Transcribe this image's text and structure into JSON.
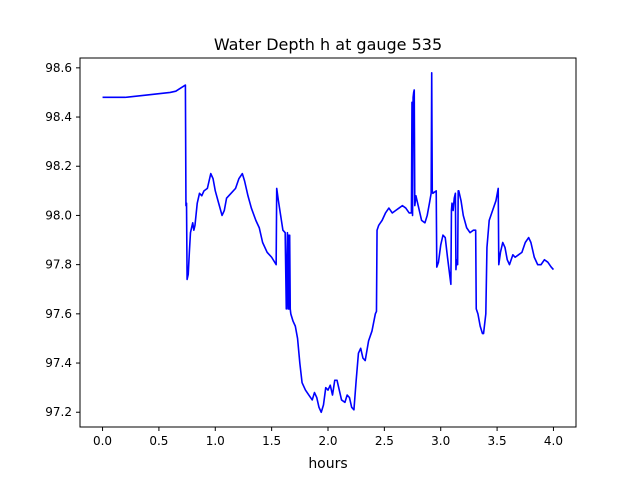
{
  "chart_data": {
    "type": "line",
    "title": "Water Depth h at gauge 535",
    "xlabel": "hours",
    "ylabel": "",
    "xlim": [
      -0.2,
      4.2
    ],
    "ylim": [
      97.14,
      98.64
    ],
    "x_ticks": [
      "0.0",
      "0.5",
      "1.0",
      "1.5",
      "2.0",
      "2.5",
      "3.0",
      "3.5",
      "4.0"
    ],
    "y_ticks": [
      "97.2",
      "97.4",
      "97.6",
      "97.8",
      "98.0",
      "98.2",
      "98.4",
      "98.6"
    ],
    "grid": false,
    "legend": "none",
    "series": [
      {
        "color": "#0000ff",
        "points": [
          [
            0.0,
            98.48
          ],
          [
            0.2,
            98.48
          ],
          [
            0.4,
            98.49
          ],
          [
            0.6,
            98.5
          ],
          [
            0.65,
            98.505
          ],
          [
            0.7,
            98.52
          ],
          [
            0.735,
            98.53
          ],
          [
            0.74,
            98.04
          ],
          [
            0.745,
            98.05
          ],
          [
            0.75,
            97.74
          ],
          [
            0.76,
            97.76
          ],
          [
            0.77,
            97.85
          ],
          [
            0.78,
            97.93
          ],
          [
            0.79,
            97.95
          ],
          [
            0.8,
            97.97
          ],
          [
            0.81,
            97.94
          ],
          [
            0.82,
            97.96
          ],
          [
            0.84,
            98.05
          ],
          [
            0.86,
            98.09
          ],
          [
            0.88,
            98.08
          ],
          [
            0.9,
            98.1
          ],
          [
            0.93,
            98.11
          ],
          [
            0.96,
            98.17
          ],
          [
            0.98,
            98.15
          ],
          [
            1.0,
            98.1
          ],
          [
            1.03,
            98.05
          ],
          [
            1.06,
            98.0
          ],
          [
            1.08,
            98.02
          ],
          [
            1.1,
            98.07
          ],
          [
            1.14,
            98.09
          ],
          [
            1.18,
            98.11
          ],
          [
            1.21,
            98.15
          ],
          [
            1.24,
            98.17
          ],
          [
            1.26,
            98.14
          ],
          [
            1.29,
            98.08
          ],
          [
            1.32,
            98.03
          ],
          [
            1.36,
            97.98
          ],
          [
            1.39,
            97.95
          ],
          [
            1.42,
            97.89
          ],
          [
            1.46,
            97.85
          ],
          [
            1.5,
            97.83
          ],
          [
            1.54,
            97.8
          ],
          [
            1.545,
            98.11
          ],
          [
            1.56,
            98.06
          ],
          [
            1.58,
            98.0
          ],
          [
            1.6,
            97.94
          ],
          [
            1.62,
            97.93
          ],
          [
            1.63,
            97.62
          ],
          [
            1.64,
            97.93
          ],
          [
            1.645,
            97.62
          ],
          [
            1.65,
            97.92
          ],
          [
            1.655,
            97.62
          ],
          [
            1.66,
            97.92
          ],
          [
            1.665,
            97.62
          ],
          [
            1.67,
            97.6
          ],
          [
            1.69,
            97.57
          ],
          [
            1.71,
            97.55
          ],
          [
            1.73,
            97.5
          ],
          [
            1.75,
            97.4
          ],
          [
            1.77,
            97.32
          ],
          [
            1.8,
            97.29
          ],
          [
            1.83,
            97.27
          ],
          [
            1.86,
            97.25
          ],
          [
            1.88,
            97.28
          ],
          [
            1.9,
            97.26
          ],
          [
            1.92,
            97.22
          ],
          [
            1.94,
            97.2
          ],
          [
            1.96,
            97.23
          ],
          [
            1.98,
            97.3
          ],
          [
            2.0,
            97.29
          ],
          [
            2.02,
            97.31
          ],
          [
            2.04,
            97.27
          ],
          [
            2.06,
            97.33
          ],
          [
            2.08,
            97.33
          ],
          [
            2.1,
            97.29
          ],
          [
            2.12,
            97.25
          ],
          [
            2.15,
            97.24
          ],
          [
            2.17,
            97.27
          ],
          [
            2.19,
            97.26
          ],
          [
            2.21,
            97.22
          ],
          [
            2.23,
            97.21
          ],
          [
            2.25,
            97.33
          ],
          [
            2.27,
            97.44
          ],
          [
            2.29,
            97.46
          ],
          [
            2.31,
            97.42
          ],
          [
            2.33,
            97.41
          ],
          [
            2.36,
            97.49
          ],
          [
            2.39,
            97.53
          ],
          [
            2.42,
            97.6
          ],
          [
            2.43,
            97.61
          ],
          [
            2.435,
            97.94
          ],
          [
            2.45,
            97.96
          ],
          [
            2.48,
            97.98
          ],
          [
            2.51,
            98.01
          ],
          [
            2.54,
            98.03
          ],
          [
            2.57,
            98.01
          ],
          [
            2.6,
            98.02
          ],
          [
            2.63,
            98.03
          ],
          [
            2.66,
            98.04
          ],
          [
            2.69,
            98.03
          ],
          [
            2.72,
            98.01
          ],
          [
            2.74,
            98.01
          ],
          [
            2.745,
            98.46
          ],
          [
            2.75,
            98.0
          ],
          [
            2.755,
            98.48
          ],
          [
            2.76,
            98.5
          ],
          [
            2.765,
            98.51
          ],
          [
            2.77,
            98.04
          ],
          [
            2.78,
            98.08
          ],
          [
            2.79,
            98.06
          ],
          [
            2.8,
            98.04
          ],
          [
            2.83,
            97.98
          ],
          [
            2.86,
            97.97
          ],
          [
            2.88,
            98.0
          ],
          [
            2.9,
            98.05
          ],
          [
            2.915,
            98.09
          ],
          [
            2.92,
            98.58
          ],
          [
            2.925,
            98.1
          ],
          [
            2.93,
            98.09
          ],
          [
            2.96,
            98.1
          ],
          [
            2.965,
            97.79
          ],
          [
            2.98,
            97.81
          ],
          [
            3.0,
            97.88
          ],
          [
            3.02,
            97.92
          ],
          [
            3.04,
            97.91
          ],
          [
            3.06,
            97.83
          ],
          [
            3.09,
            97.72
          ],
          [
            3.095,
            98.02
          ],
          [
            3.1,
            98.05
          ],
          [
            3.11,
            98.02
          ],
          [
            3.12,
            98.07
          ],
          [
            3.13,
            98.09
          ],
          [
            3.135,
            97.78
          ],
          [
            3.14,
            97.82
          ],
          [
            3.15,
            97.8
          ],
          [
            3.155,
            98.1
          ],
          [
            3.16,
            98.1
          ],
          [
            3.18,
            98.06
          ],
          [
            3.2,
            98.0
          ],
          [
            3.23,
            97.95
          ],
          [
            3.26,
            97.93
          ],
          [
            3.29,
            97.94
          ],
          [
            3.31,
            97.94
          ],
          [
            3.315,
            97.62
          ],
          [
            3.33,
            97.6
          ],
          [
            3.35,
            97.55
          ],
          [
            3.37,
            97.52
          ],
          [
            3.38,
            97.52
          ],
          [
            3.4,
            97.6
          ],
          [
            3.41,
            97.87
          ],
          [
            3.43,
            97.98
          ],
          [
            3.46,
            98.02
          ],
          [
            3.49,
            98.06
          ],
          [
            3.51,
            98.11
          ],
          [
            3.515,
            97.8
          ],
          [
            3.53,
            97.85
          ],
          [
            3.55,
            97.89
          ],
          [
            3.57,
            97.87
          ],
          [
            3.59,
            97.82
          ],
          [
            3.61,
            97.8
          ],
          [
            3.64,
            97.84
          ],
          [
            3.66,
            97.83
          ],
          [
            3.69,
            97.84
          ],
          [
            3.72,
            97.85
          ],
          [
            3.75,
            97.89
          ],
          [
            3.78,
            97.91
          ],
          [
            3.8,
            97.89
          ],
          [
            3.83,
            97.83
          ],
          [
            3.86,
            97.8
          ],
          [
            3.89,
            97.8
          ],
          [
            3.92,
            97.82
          ],
          [
            3.95,
            97.81
          ],
          [
            3.98,
            97.79
          ],
          [
            4.0,
            97.78
          ]
        ]
      }
    ]
  }
}
